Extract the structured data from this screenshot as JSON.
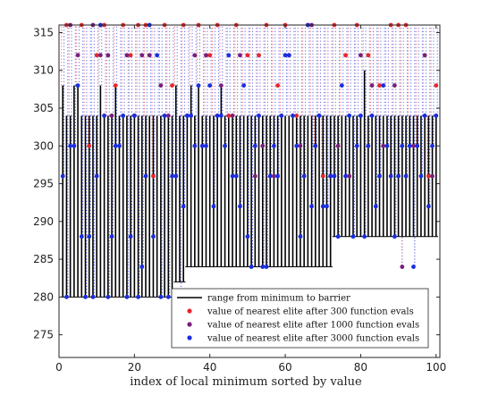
{
  "chart_data": {
    "type": "scatter",
    "title": "",
    "xlabel": "index of local minimum sorted by value",
    "ylabel": "",
    "xlim": [
      0,
      101
    ],
    "ylim": [
      272,
      316
    ],
    "xticks": [
      0,
      20,
      40,
      60,
      80,
      100
    ],
    "yticks": [
      275,
      280,
      285,
      290,
      295,
      300,
      305,
      310,
      315
    ],
    "grid": false,
    "legend_position": "bottom-right",
    "legend": [
      {
        "label": "range from minimum to barrier",
        "kind": "line",
        "color": "#000000"
      },
      {
        "label": "value of nearest elite after 300 function evals",
        "kind": "marker",
        "color": "#e8262b"
      },
      {
        "label": "value of nearest elite after 1000 function evals",
        "kind": "marker",
        "color": "#7a1f7a"
      },
      {
        "label": "value of nearest elite after 3000 function evals",
        "kind": "marker",
        "color": "#1a2de0"
      }
    ],
    "ranges": {
      "x": [
        1,
        2,
        3,
        4,
        5,
        6,
        7,
        8,
        9,
        10,
        11,
        12,
        13,
        14,
        15,
        16,
        17,
        18,
        19,
        20,
        21,
        22,
        23,
        24,
        25,
        26,
        27,
        28,
        29,
        30,
        31,
        32,
        33,
        34,
        35,
        36,
        37,
        38,
        39,
        40,
        41,
        42,
        43,
        44,
        45,
        46,
        47,
        48,
        49,
        50,
        51,
        52,
        53,
        54,
        55,
        56,
        57,
        58,
        59,
        60,
        61,
        62,
        63,
        64,
        65,
        66,
        67,
        68,
        69,
        70,
        71,
        72,
        73,
        74,
        75,
        76,
        77,
        78,
        79,
        80,
        81,
        82,
        83,
        84,
        85,
        86,
        87,
        88,
        89,
        90,
        91,
        92,
        93,
        94,
        95,
        96,
        97,
        98,
        99,
        100
      ],
      "min": [
        280,
        280,
        280,
        280,
        280,
        280,
        280,
        280,
        280,
        280,
        280,
        280,
        280,
        280,
        280,
        280,
        280,
        280,
        280,
        280,
        280,
        280,
        280,
        280,
        280,
        280,
        280,
        280,
        280,
        280,
        282,
        282,
        282,
        284,
        284,
        284,
        284,
        284,
        284,
        284,
        284,
        284,
        284,
        284,
        284,
        284,
        284,
        284,
        284,
        284,
        284,
        284,
        284,
        284,
        284,
        284,
        284,
        284,
        284,
        284,
        284,
        284,
        284,
        284,
        284,
        284,
        284,
        284,
        284,
        284,
        284,
        284,
        288,
        288,
        288,
        288,
        288,
        288,
        288,
        288,
        288,
        288,
        288,
        288,
        288,
        288,
        288,
        288,
        288,
        288,
        288,
        288,
        288,
        288,
        288,
        288,
        288,
        288,
        288,
        288
      ],
      "max": [
        308,
        304,
        304,
        308,
        308,
        304,
        304,
        304,
        304,
        304,
        308,
        304,
        304,
        304,
        308,
        304,
        304,
        304,
        304,
        304,
        304,
        304,
        304,
        304,
        304,
        304,
        304,
        304,
        304,
        304,
        308,
        304,
        304,
        304,
        308,
        304,
        308,
        304,
        304,
        304,
        304,
        304,
        308,
        304,
        304,
        304,
        304,
        304,
        304,
        304,
        304,
        304,
        304,
        304,
        304,
        304,
        304,
        304,
        304,
        304,
        304,
        304,
        304,
        304,
        304,
        304,
        304,
        304,
        304,
        304,
        304,
        304,
        304,
        304,
        304,
        304,
        304,
        304,
        304,
        304,
        310,
        304,
        304,
        304,
        304,
        304,
        304,
        304,
        304,
        304,
        304,
        304,
        304,
        304,
        304,
        304,
        304,
        304,
        304,
        304
      ]
    },
    "series": [
      {
        "name": "value of nearest elite after 300 function evals",
        "color": "#e8262b",
        "x": [
          2,
          6,
          8,
          10,
          12,
          15,
          17,
          19,
          21,
          23,
          25,
          28,
          30,
          33,
          37,
          40,
          42,
          45,
          47,
          50,
          53,
          55,
          58,
          60,
          63,
          66,
          68,
          70,
          73,
          76,
          79,
          82,
          85,
          88,
          90,
          92,
          95,
          98,
          100
        ],
        "y": [
          316,
          316,
          300,
          312,
          316,
          308,
          316,
          312,
          316,
          316,
          296,
          316,
          308,
          316,
          316,
          312,
          316,
          304,
          316,
          312,
          312,
          316,
          308,
          316,
          304,
          316,
          300,
          296,
          316,
          312,
          316,
          312,
          308,
          316,
          316,
          316,
          300,
          296,
          308
        ]
      },
      {
        "name": "value of nearest elite after 1000 function evals",
        "color": "#7a1f7a",
        "x": [
          3,
          5,
          9,
          11,
          13,
          14,
          18,
          20,
          22,
          24,
          27,
          29,
          31,
          34,
          36,
          38,
          39,
          43,
          46,
          48,
          52,
          54,
          57,
          61,
          64,
          67,
          69,
          72,
          74,
          77,
          80,
          83,
          86,
          89,
          91,
          94,
          97,
          99
        ],
        "y": [
          316,
          312,
          316,
          312,
          312,
          304,
          312,
          304,
          312,
          312,
          308,
          304,
          296,
          304,
          312,
          300,
          312,
          308,
          304,
          312,
          296,
          300,
          296,
          312,
          300,
          316,
          304,
          296,
          300,
          296,
          312,
          308,
          300,
          308,
          284,
          300,
          312,
          296
        ]
      },
      {
        "name": "value of nearest elite after 3000 function evals",
        "color": "#1a2de0",
        "x": [
          1,
          2,
          3,
          4,
          5,
          6,
          7,
          8,
          9,
          10,
          11,
          12,
          13,
          14,
          15,
          16,
          17,
          18,
          19,
          20,
          21,
          22,
          23,
          24,
          25,
          26,
          27,
          28,
          29,
          30,
          31,
          32,
          33,
          34,
          35,
          36,
          37,
          38,
          39,
          40,
          41,
          42,
          43,
          44,
          45,
          46,
          47,
          48,
          49,
          50,
          51,
          52,
          53,
          54,
          55,
          56,
          57,
          58,
          59,
          60,
          61,
          62,
          63,
          64,
          65,
          66,
          67,
          68,
          69,
          70,
          71,
          72,
          73,
          74,
          75,
          76,
          77,
          78,
          79,
          80,
          81,
          82,
          83,
          84,
          85,
          86,
          87,
          88,
          89,
          90,
          91,
          92,
          93,
          94,
          95,
          96,
          97,
          98,
          99,
          100
        ],
        "y": [
          296,
          280,
          300,
          300,
          308,
          288,
          280,
          288,
          280,
          296,
          316,
          304,
          280,
          288,
          300,
          300,
          304,
          280,
          288,
          304,
          280,
          284,
          296,
          316,
          288,
          312,
          280,
          304,
          280,
          296,
          296,
          280,
          292,
          304,
          304,
          300,
          308,
          300,
          300,
          308,
          292,
          304,
          304,
          300,
          312,
          296,
          296,
          292,
          308,
          288,
          284,
          300,
          304,
          284,
          284,
          296,
          300,
          296,
          304,
          312,
          312,
          304,
          300,
          288,
          296,
          316,
          292,
          300,
          304,
          292,
          292,
          296,
          296,
          288,
          308,
          296,
          304,
          288,
          300,
          304,
          288,
          300,
          304,
          292,
          296,
          308,
          300,
          296,
          288,
          296,
          300,
          296,
          300,
          284,
          300,
          296,
          304,
          292,
          300,
          304
        ]
      }
    ]
  }
}
